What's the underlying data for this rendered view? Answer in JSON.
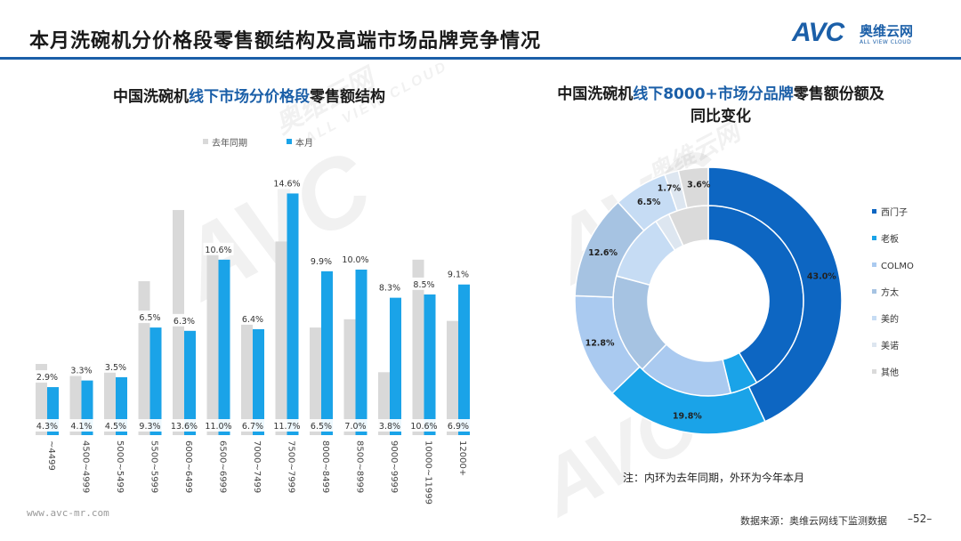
{
  "page": {
    "title": "本月洗碗机分价格段零售额结构及高端市场品牌竞争情况",
    "logo_mark": "AVC",
    "logo_cn": "奥维云网",
    "logo_en": "ALL VIEW CLOUD",
    "watermark_text": "AVC",
    "watermark_sub": "ALL VIEW CLOUD",
    "watermark_cn": "奥维云网",
    "footer_url": "www.avc-mr.com",
    "footer_source": "数据来源：奥维云网线下监测数据",
    "page_number": "–52–",
    "note": "注：内环为去年同期，外环为今年本月"
  },
  "colors": {
    "accent": "#1b5fa8",
    "bar_last_year": "#d9d9d9",
    "bar_this_month": "#1aa3e8"
  },
  "chart_data": [
    {
      "type": "bar",
      "title_parts": [
        "中国洗碗机",
        "线下市场分价格段",
        "零售额结构"
      ],
      "legend": [
        "去年同期",
        "本月"
      ],
      "categories": [
        "~4499",
        "4500~4999",
        "5000~5499",
        "5500~5999",
        "6000~6499",
        "6500~6999",
        "7000~7499",
        "7500~7999",
        "8000~8499",
        "8500~8999",
        "9000~9999",
        "10000~11999",
        "12000+"
      ],
      "series": [
        {
          "name": "去年同期",
          "values": [
            4.3,
            4.1,
            4.5,
            9.3,
            13.6,
            11.0,
            6.7,
            11.7,
            6.5,
            7.0,
            3.8,
            10.6,
            6.9
          ],
          "labels": [
            "4.3%",
            "4.1%",
            "4.5%",
            "9.3%",
            "13.6%",
            "11.0%",
            "6.7%",
            "11.7%",
            "6.5%",
            "7.0%",
            "3.8%",
            "10.6%",
            "6.9%"
          ]
        },
        {
          "name": "本月",
          "values": [
            2.9,
            3.3,
            3.5,
            6.5,
            6.3,
            10.6,
            6.4,
            14.6,
            9.9,
            10.0,
            8.3,
            8.5,
            9.1
          ],
          "labels": [
            "2.9%",
            "3.3%",
            "3.5%",
            "6.5%",
            "6.3%",
            "10.6%",
            "6.4%",
            "14.6%",
            "9.9%",
            "10.0%",
            "8.3%",
            "8.5%",
            "9.1%"
          ]
        }
      ],
      "ylim": [
        0,
        15
      ]
    },
    {
      "type": "pie",
      "subtype": "double-donut",
      "title_parts": [
        "中国洗碗机",
        "线下8000+市场分品牌",
        "零售额份额及同比变化"
      ],
      "legend_position": "right",
      "categories": [
        "西门子",
        "老板",
        "COLMO",
        "方太",
        "美的",
        "美诺",
        "其他"
      ],
      "colors": [
        "#0d66c2",
        "#1aa3e8",
        "#aacaf0",
        "#a6c3e2",
        "#c6dcf4",
        "#dde6f0",
        "#dadada"
      ],
      "series": [
        {
          "name": "本月(外环)",
          "values": [
            43.0,
            19.8,
            12.8,
            12.6,
            6.5,
            1.7,
            3.6
          ],
          "labels": [
            "43.0%",
            "19.8%",
            "12.8%",
            "12.6%",
            "6.5%",
            "1.7%",
            "3.6%"
          ]
        },
        {
          "name": "去年同期(内环)",
          "values": [
            41.5,
            4.7,
            16.0,
            17.0,
            11.5,
            2.5,
            6.8
          ]
        }
      ]
    }
  ]
}
